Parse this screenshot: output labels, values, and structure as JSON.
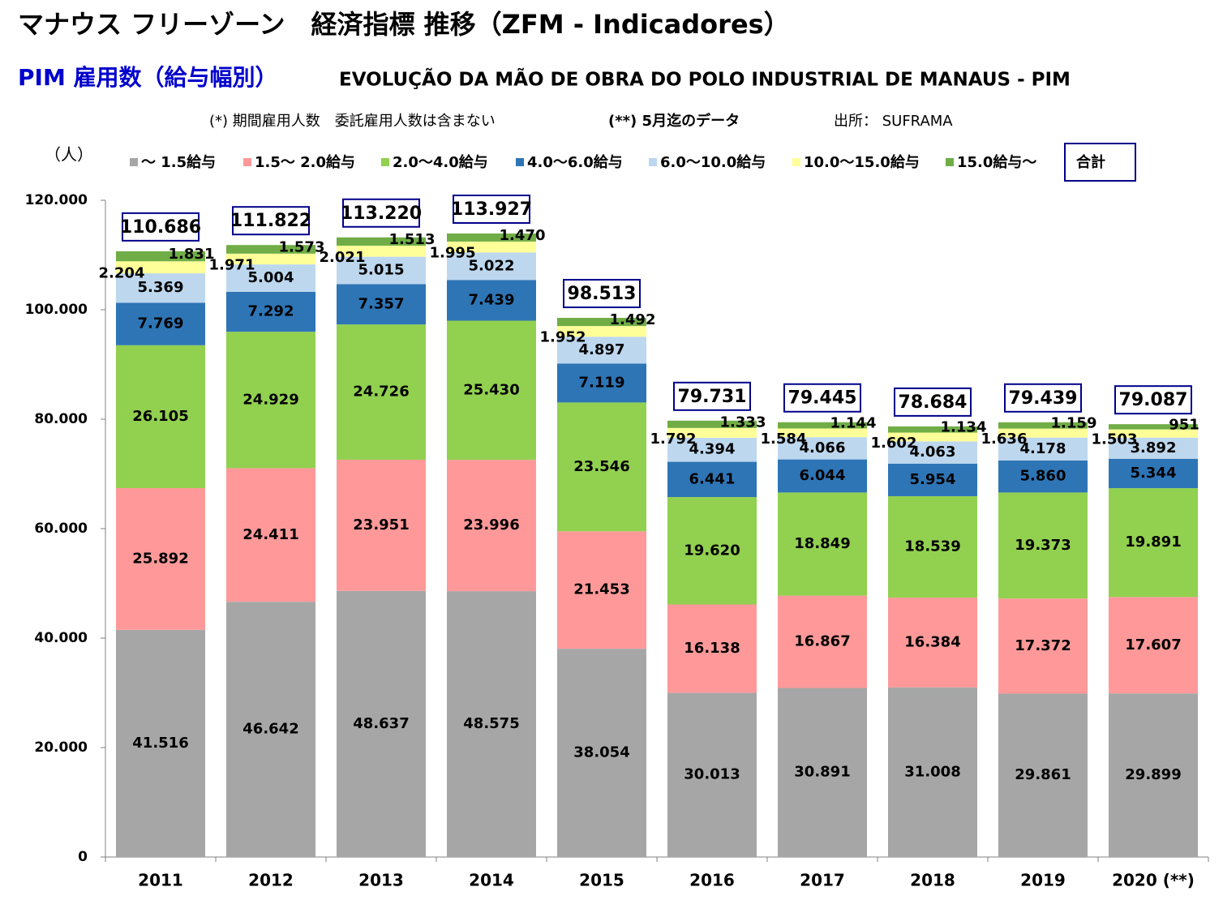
{
  "chart_data": {
    "type": "stacked_bar",
    "title": "マナウス フリーゾーン　経済指標 推移（ZFM - Indicadores）",
    "subtitle": "PIM 雇用数（給与幅別）",
    "subtitle2": "EVOLUÇÃO DA MÃO DE OBRA DO POLO INDUSTRIAL DE MANAUS - PIM",
    "notes": [
      "(*) 期間雇用人数　委託雇用人数は含まない",
      "(**) 5月迄のデータ",
      "出所： SUFRAMA"
    ],
    "y_label": "（人）",
    "categories": [
      "2011",
      "2012",
      "2013",
      "2014",
      "2015",
      "2016",
      "2017",
      "2018",
      "2019",
      "2020 (**)"
    ],
    "series": [
      {
        "name": "～ 1.5給与",
        "color": "#a6a6a6",
        "values": [
          41516,
          46642,
          48637,
          48575,
          38054,
          30013,
          30891,
          31008,
          29861,
          29899
        ],
        "value_labels": [
          "41.516",
          "46.642",
          "48.637",
          "48.575",
          "38.054",
          "30.013",
          "30.891",
          "31.008",
          "29.861",
          "29.899"
        ]
      },
      {
        "name": "1.5～ 2.0給与",
        "color": "#ff9999",
        "values": [
          25892,
          24411,
          23951,
          23996,
          21453,
          16138,
          16867,
          16384,
          17372,
          17607
        ],
        "value_labels": [
          "25.892",
          "24.411",
          "23.951",
          "23.996",
          "21.453",
          "16.138",
          "16.867",
          "16.384",
          "17.372",
          "17.607"
        ]
      },
      {
        "name": "2.0～4.0給与",
        "color": "#92d050",
        "values": [
          26105,
          24929,
          24726,
          25430,
          23546,
          19620,
          18849,
          18539,
          19373,
          19891
        ],
        "value_labels": [
          "26.105",
          "24.929",
          "24.726",
          "25.430",
          "23.546",
          "19.620",
          "18.849",
          "18.539",
          "19.373",
          "19.891"
        ]
      },
      {
        "name": "4.0～6.0給与",
        "color": "#2e75b6",
        "values": [
          7769,
          7292,
          7357,
          7439,
          7119,
          6441,
          6044,
          5954,
          5860,
          5344
        ],
        "value_labels": [
          "7.769",
          "7.292",
          "7.357",
          "7.439",
          "7.119",
          "6.441",
          "6.044",
          "5.954",
          "5.860",
          "5.344"
        ]
      },
      {
        "name": "6.0～10.0給与",
        "color": "#bdd7ee",
        "values": [
          5369,
          5004,
          5015,
          5022,
          4897,
          4394,
          4066,
          4063,
          4178,
          3892
        ],
        "value_labels": [
          "5.369",
          "5.004",
          "5.015",
          "5.022",
          "4.897",
          "4.394",
          "4.066",
          "4.063",
          "4.178",
          "3.892"
        ]
      },
      {
        "name": "10.0～15.0給与",
        "color": "#ffff99",
        "values": [
          2204,
          1971,
          2021,
          1995,
          1952,
          1792,
          1584,
          1602,
          1636,
          1503
        ],
        "value_labels": [
          "2.204",
          "1.971",
          "2.021",
          "1.995",
          "1.952",
          "1.792",
          "1.584",
          "1.602",
          "1.636",
          "1.503"
        ]
      },
      {
        "name": "15.0給与～",
        "color": "#70ad47",
        "values": [
          1831,
          1573,
          1513,
          1470,
          1492,
          1333,
          1144,
          1134,
          1159,
          951
        ],
        "value_labels": [
          "1.831",
          "1.573",
          "1.513",
          "1.470",
          "1.492",
          "1.333",
          "1.144",
          "1.134",
          "1.159",
          "951"
        ]
      }
    ],
    "totals": {
      "name": "合計",
      "values": [
        110686,
        111822,
        113220,
        113927,
        98513,
        79731,
        79445,
        78684,
        79439,
        79087
      ],
      "value_labels": [
        "110.686",
        "111.822",
        "113.220",
        "113.927",
        "98.513",
        "79.731",
        "79.445",
        "78.684",
        "79.439",
        "79.087"
      ]
    },
    "ylim": [
      0,
      120000
    ],
    "yticks": [
      0,
      {
        "value": 20000,
        "label": "20.000"
      },
      {
        "value": 40000,
        "label": "40.000"
      },
      {
        "value": 60000,
        "label": "60.000"
      },
      {
        "value": 80000,
        "label": "80.000"
      },
      {
        "value": 100000,
        "label": "100.000"
      },
      {
        "value": 120000,
        "label": "120.000"
      }
    ],
    "grid": false
  }
}
